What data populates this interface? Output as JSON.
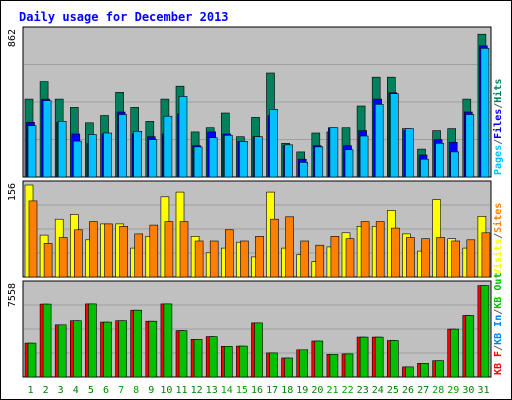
{
  "chart_data": {
    "type": "bar",
    "title": "Daily usage for December 2013",
    "categories": [
      "1",
      "2",
      "3",
      "4",
      "5",
      "6",
      "7",
      "8",
      "9",
      "10",
      "11",
      "12",
      "13",
      "14",
      "15",
      "16",
      "17",
      "18",
      "19",
      "20",
      "21",
      "22",
      "23",
      "24",
      "25",
      "26",
      "27",
      "28",
      "29",
      "30",
      "31"
    ],
    "weekend_days": [
      "7",
      "8",
      "14",
      "15",
      "21",
      "22",
      "28",
      "29"
    ],
    "panels": [
      {
        "id": "pages-files-hits",
        "ytick": "862",
        "ymax": 862,
        "series": [
          {
            "name": "Hits",
            "color": "#00805c",
            "values": [
              460,
              563,
              460,
              411,
              320,
              363,
              500,
              411,
              328,
              460,
              536,
              266,
              291,
              378,
              238,
              352,
              614,
              199,
              148,
              260,
              266,
              291,
              419,
              589,
              589,
              286,
              165,
              274,
              286,
              460,
              843
            ]
          },
          {
            "name": "Files",
            "color": "#0000ff",
            "values": [
              323,
              460,
              323,
              254,
              198,
              254,
              384,
              254,
              238,
              254,
              372,
              185,
              266,
              254,
              210,
              238,
              363,
              185,
              105,
              185,
              291,
              185,
              274,
              460,
              498,
              274,
              130,
              221,
              205,
              384,
              774
            ]
          },
          {
            "name": "Pages",
            "color": "#00c0ff",
            "values": [
              303,
              451,
              329,
              212,
              251,
              260,
              369,
              270,
              221,
              359,
              476,
              178,
              232,
              246,
              210,
              238,
              400,
              190,
              86,
              178,
              291,
              161,
              242,
              429,
              492,
              286,
              105,
              199,
              148,
              369,
              760
            ]
          }
        ],
        "legend": [
          {
            "text": "Pages",
            "color": "#00c0ff"
          },
          {
            "text": "/",
            "color": "#606060"
          },
          {
            "text": "Files",
            "color": "#0000ff"
          },
          {
            "text": "/",
            "color": "#606060"
          },
          {
            "text": "Hits",
            "color": "#00805c"
          }
        ]
      },
      {
        "id": "visits-sites",
        "ytick": "156",
        "ymax": 156,
        "series": [
          {
            "name": "Visits",
            "color": "#ffff00",
            "values": [
              156,
              71,
              98,
              106,
              63,
              90,
              90,
              49,
              69,
              136,
              144,
              69,
              41,
              49,
              59,
              34,
              144,
              49,
              38,
              26,
              51,
              75,
              86,
              86,
              113,
              73,
              44,
              131,
              65,
              49,
              103
            ]
          },
          {
            "name": "Sites",
            "color": "#ff8000",
            "values": [
              129,
              57,
              67,
              80,
              94,
              90,
              86,
              73,
              88,
              94,
              94,
              61,
              61,
              80,
              61,
              69,
              98,
              102,
              61,
              54,
              69,
              65,
              94,
              94,
              83,
              67,
              65,
              67,
              61,
              63,
              75
            ]
          }
        ],
        "legend": [
          {
            "text": "Visits",
            "color": "#ffff00"
          },
          {
            "text": "/",
            "color": "#606060"
          },
          {
            "text": "Sites",
            "color": "#ff8000"
          }
        ]
      },
      {
        "id": "kbf-kbin-kbout",
        "ytick": "7558",
        "ymax": 7558,
        "series": [
          {
            "name": "KB F",
            "color": "#ff0000",
            "values": [
              2784,
              5990,
              4285,
              4626,
              6007,
              4507,
              4626,
              5484,
              4583,
              6007,
              3810,
              3095,
              3320,
              2525,
              2539,
              4443,
              1981,
              1564,
              2238,
              2960,
              1862,
              1901,
              3276,
              3276,
              2997,
              829,
              1126,
              1335,
              3938,
              5050,
              7510
            ]
          },
          {
            "name": "KB In",
            "color": "#0080ff",
            "values": [
              0,
              0,
              0,
              0,
              0,
              0,
              0,
              0,
              0,
              0,
              0,
              0,
              0,
              0,
              0,
              0,
              0,
              0,
              0,
              0,
              0,
              0,
              0,
              0,
              0,
              0,
              0,
              0,
              0,
              0,
              0
            ]
          },
          {
            "name": "KB Out",
            "color": "#00c000",
            "values": [
              2784,
              5990,
              4285,
              4626,
              6007,
              4507,
              4626,
              5484,
              4583,
              6007,
              3810,
              3095,
              3320,
              2525,
              2539,
              4443,
              1981,
              1564,
              2238,
              2960,
              1862,
              1901,
              3276,
              3276,
              2997,
              829,
              1126,
              1335,
              3938,
              5050,
              7510
            ]
          }
        ],
        "legend": [
          {
            "text": "KB F",
            "color": "#ff0000"
          },
          {
            "text": "/",
            "color": "#606060"
          },
          {
            "text": "KB In",
            "color": "#0080ff"
          },
          {
            "text": "/",
            "color": "#606060"
          },
          {
            "text": "KB Out",
            "color": "#00c000"
          }
        ]
      }
    ],
    "colors": {
      "title": "#0000ff",
      "panel_bg": "#c0c0c0",
      "weekday_label": "#008000",
      "weekend_label": "#00a000",
      "outline": "#000000"
    }
  }
}
